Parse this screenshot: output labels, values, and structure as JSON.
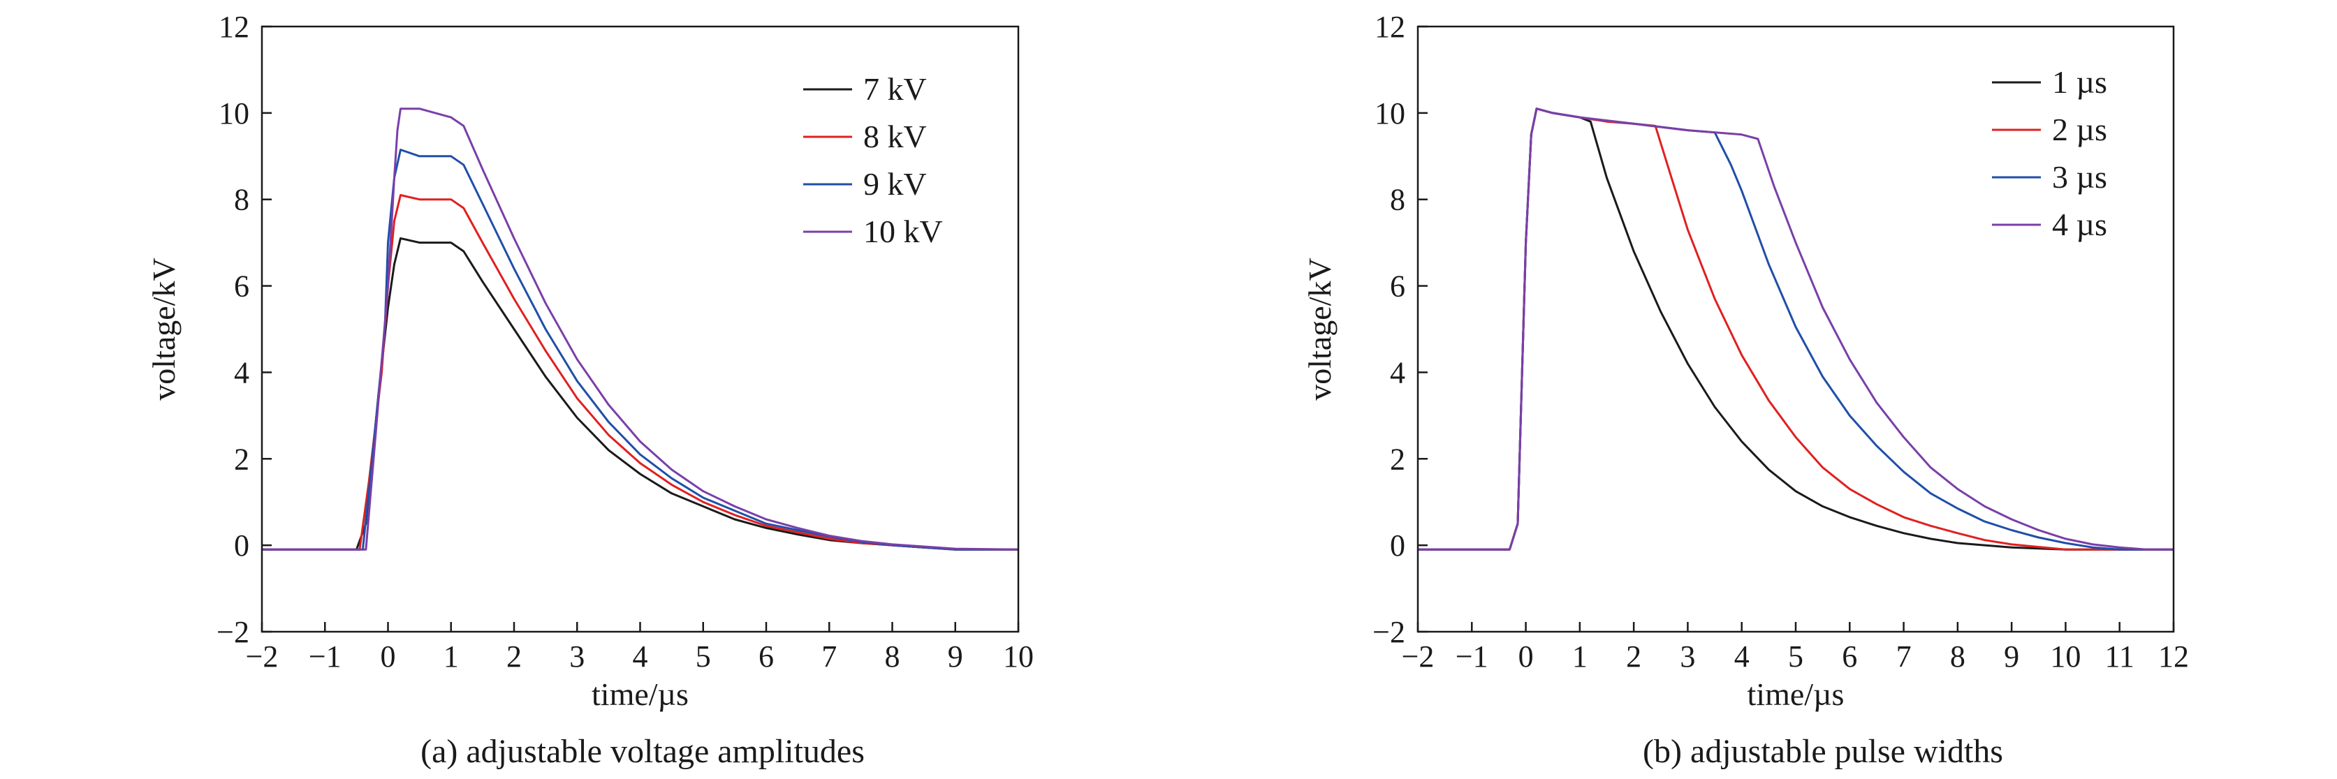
{
  "figure": {
    "panel_a_caption": "(a) adjustable voltage amplitudes",
    "panel_b_caption": "(b) adjustable pulse widths"
  },
  "chart_data": [
    {
      "type": "line",
      "xlabel": "time/µs",
      "ylabel": "voltage/kV",
      "xlim": [
        -2,
        10
      ],
      "ylim": [
        -2,
        12
      ],
      "xticks": [
        "−2",
        "−1",
        "0",
        "1",
        "2",
        "3",
        "4",
        "5",
        "6",
        "7",
        "8",
        "9",
        "10"
      ],
      "yticks": [
        "−2",
        "0",
        "2",
        "4",
        "6",
        "8",
        "10",
        "12"
      ],
      "legend_position": "top-right",
      "grid": false,
      "series": [
        {
          "name": "7 kV",
          "color": "#1a1a1a",
          "x": [
            -2,
            -0.5,
            -0.35,
            -0.15,
            0,
            0.1,
            0.2,
            0.5,
            1.0,
            1.2,
            1.5,
            2,
            2.5,
            3,
            3.5,
            4,
            4.5,
            5,
            5.5,
            6,
            6.5,
            7,
            7.5,
            8,
            8.5,
            9,
            10
          ],
          "y": [
            -0.1,
            -0.1,
            0.5,
            3.5,
            5.5,
            6.5,
            7.1,
            7.0,
            7.0,
            6.8,
            6.1,
            5.0,
            3.9,
            2.95,
            2.2,
            1.65,
            1.2,
            0.9,
            0.6,
            0.4,
            0.25,
            0.12,
            0.05,
            0.0,
            -0.05,
            -0.1,
            -0.1
          ]
        },
        {
          "name": "8 kV",
          "color": "#e02020",
          "x": [
            -2,
            -0.45,
            -0.3,
            -0.1,
            0,
            0.1,
            0.2,
            0.5,
            1.0,
            1.2,
            1.5,
            2,
            2.5,
            3,
            3.5,
            4,
            4.5,
            5,
            5.5,
            6,
            6.5,
            7,
            7.5,
            8,
            8.5,
            9,
            10
          ],
          "y": [
            -0.1,
            -0.1,
            1.5,
            4.0,
            6.0,
            7.5,
            8.1,
            8.0,
            8.0,
            7.8,
            7.0,
            5.7,
            4.5,
            3.4,
            2.55,
            1.9,
            1.4,
            1.0,
            0.7,
            0.45,
            0.3,
            0.15,
            0.05,
            0.0,
            -0.05,
            -0.1,
            -0.1
          ]
        },
        {
          "name": "9 kV",
          "color": "#1f4fa8",
          "x": [
            -2,
            -0.4,
            -0.25,
            -0.05,
            0,
            0.1,
            0.2,
            0.5,
            1.0,
            1.2,
            1.5,
            2,
            2.5,
            3,
            3.5,
            4,
            4.5,
            5,
            5.5,
            6,
            6.5,
            7,
            7.5,
            8,
            8.5,
            9,
            10
          ],
          "y": [
            -0.1,
            -0.1,
            2.0,
            5.0,
            7.0,
            8.5,
            9.15,
            9.0,
            9.0,
            8.8,
            7.9,
            6.4,
            5.0,
            3.8,
            2.85,
            2.1,
            1.55,
            1.1,
            0.8,
            0.5,
            0.35,
            0.2,
            0.08,
            0.0,
            -0.05,
            -0.1,
            -0.1
          ]
        },
        {
          "name": "10 kV",
          "color": "#7a3fa8",
          "x": [
            -2,
            -0.35,
            -0.2,
            0,
            0.1,
            0.15,
            0.2,
            0.5,
            1.0,
            1.2,
            1.5,
            2,
            2.5,
            3,
            3.5,
            4,
            4.5,
            5,
            5.5,
            6,
            6.5,
            7,
            7.5,
            8,
            8.5,
            9,
            10
          ],
          "y": [
            -0.1,
            -0.1,
            2.5,
            6.0,
            8.5,
            9.6,
            10.1,
            10.1,
            9.9,
            9.7,
            8.7,
            7.1,
            5.6,
            4.3,
            3.25,
            2.4,
            1.75,
            1.25,
            0.9,
            0.6,
            0.4,
            0.22,
            0.1,
            0.02,
            -0.03,
            -0.08,
            -0.1
          ]
        }
      ]
    },
    {
      "type": "line",
      "xlabel": "time/µs",
      "ylabel": "voltage/kV",
      "xlim": [
        -2,
        12
      ],
      "ylim": [
        -2,
        12
      ],
      "xticks": [
        "−2",
        "−1",
        "0",
        "1",
        "2",
        "3",
        "4",
        "5",
        "6",
        "7",
        "8",
        "9",
        "10",
        "11",
        "12"
      ],
      "yticks": [
        "−2",
        "0",
        "2",
        "4",
        "6",
        "8",
        "10",
        "12"
      ],
      "legend_position": "top-right",
      "grid": false,
      "series": [
        {
          "name": "1 µs",
          "color": "#1a1a1a",
          "x": [
            -2,
            -0.3,
            -0.15,
            0.0,
            0.1,
            0.2,
            0.5,
            1.0,
            1.2,
            1.5,
            2,
            2.5,
            3,
            3.5,
            4,
            4.5,
            5,
            5.5,
            6,
            6.5,
            7,
            7.5,
            8,
            8.5,
            9,
            10,
            11,
            12
          ],
          "y": [
            -0.1,
            -0.1,
            0.5,
            7.0,
            9.5,
            10.1,
            10.0,
            9.9,
            9.8,
            8.5,
            6.8,
            5.4,
            4.2,
            3.2,
            2.4,
            1.75,
            1.25,
            0.9,
            0.65,
            0.45,
            0.28,
            0.15,
            0.05,
            0.0,
            -0.05,
            -0.1,
            -0.1,
            -0.1
          ]
        },
        {
          "name": "2 µs",
          "color": "#e02020",
          "x": [
            -2,
            -0.3,
            -0.15,
            0.0,
            0.1,
            0.2,
            0.5,
            1.0,
            1.5,
            2.0,
            2.4,
            2.7,
            3,
            3.5,
            4,
            4.5,
            5,
            5.5,
            6,
            6.5,
            7,
            7.5,
            8,
            8.5,
            9,
            10,
            11,
            12
          ],
          "y": [
            -0.1,
            -0.1,
            0.5,
            7.0,
            9.5,
            10.1,
            10.0,
            9.9,
            9.8,
            9.75,
            9.7,
            8.5,
            7.3,
            5.7,
            4.4,
            3.35,
            2.5,
            1.8,
            1.3,
            0.95,
            0.65,
            0.45,
            0.28,
            0.12,
            0.02,
            -0.1,
            -0.1,
            -0.1
          ]
        },
        {
          "name": "3 µs",
          "color": "#1f4fa8",
          "x": [
            -2,
            -0.3,
            -0.15,
            0.0,
            0.1,
            0.2,
            0.5,
            1.0,
            2.0,
            3.0,
            3.5,
            3.8,
            4,
            4.5,
            5,
            5.5,
            6,
            6.5,
            7,
            7.5,
            8,
            8.5,
            9,
            9.5,
            10,
            10.5,
            11,
            12
          ],
          "y": [
            -0.1,
            -0.1,
            0.5,
            7.0,
            9.5,
            10.1,
            10.0,
            9.9,
            9.75,
            9.6,
            9.55,
            8.8,
            8.2,
            6.5,
            5.05,
            3.9,
            3.0,
            2.3,
            1.7,
            1.2,
            0.85,
            0.55,
            0.35,
            0.18,
            0.05,
            -0.05,
            -0.1,
            -0.1
          ]
        },
        {
          "name": "4 µs",
          "color": "#7a3fa8",
          "x": [
            -2,
            -0.3,
            -0.15,
            0.0,
            0.1,
            0.2,
            0.5,
            1.0,
            2.0,
            3.0,
            4.0,
            4.3,
            4.6,
            5,
            5.5,
            6,
            6.5,
            7,
            7.5,
            8,
            8.5,
            9,
            9.5,
            10,
            10.5,
            11,
            11.5,
            12
          ],
          "y": [
            -0.1,
            -0.1,
            0.5,
            7.0,
            9.5,
            10.1,
            10.0,
            9.9,
            9.75,
            9.6,
            9.5,
            9.4,
            8.3,
            7.0,
            5.5,
            4.3,
            3.3,
            2.5,
            1.8,
            1.3,
            0.9,
            0.6,
            0.35,
            0.15,
            0.02,
            -0.05,
            -0.1,
            -0.1
          ]
        }
      ]
    }
  ]
}
